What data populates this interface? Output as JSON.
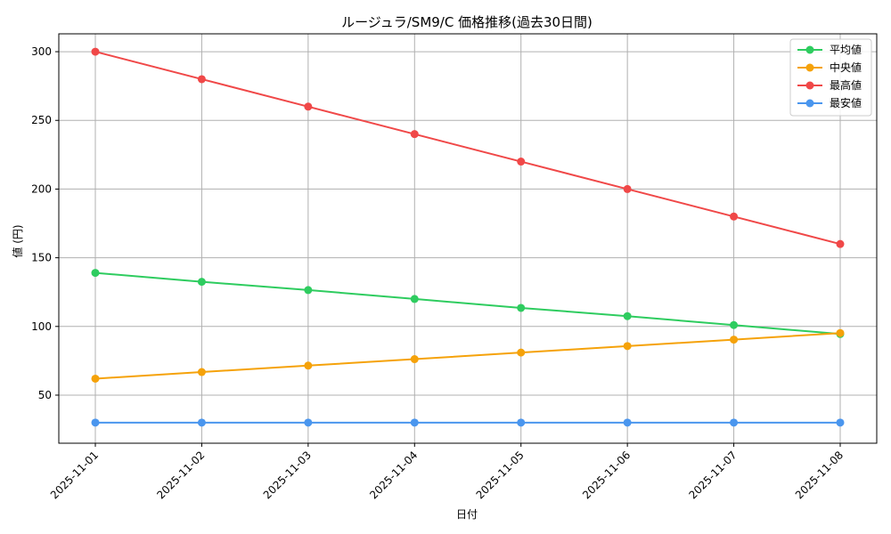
{
  "chart_data": {
    "type": "line",
    "title": "ルージュラ/SM9/C 価格推移(過去30日間)",
    "xlabel": "日付",
    "ylabel": "値 (円)",
    "categories": [
      "2025-11-01",
      "2025-11-02",
      "2025-11-03",
      "2025-11-04",
      "2025-11-05",
      "2025-11-06",
      "2025-11-07",
      "2025-11-08"
    ],
    "ylim": [
      15,
      313
    ],
    "yticks": [
      50,
      100,
      150,
      200,
      250,
      300
    ],
    "grid": true,
    "legend_position": "top-right",
    "series": [
      {
        "name": "平均値",
        "color": "#2ecc5f",
        "values": [
          139,
          132.5,
          126.5,
          120,
          113.5,
          107.5,
          101,
          94.5
        ]
      },
      {
        "name": "中央値",
        "color": "#f5a20a",
        "values": [
          62,
          66.8,
          71.5,
          76.2,
          81,
          85.7,
          90.4,
          95.2
        ]
      },
      {
        "name": "最高値",
        "color": "#f04848",
        "values": [
          300,
          280,
          260,
          240,
          220,
          200,
          180,
          160
        ]
      },
      {
        "name": "最安値",
        "color": "#4a96ee",
        "values": [
          30,
          30,
          30,
          30,
          30,
          30,
          30,
          30
        ]
      }
    ]
  }
}
